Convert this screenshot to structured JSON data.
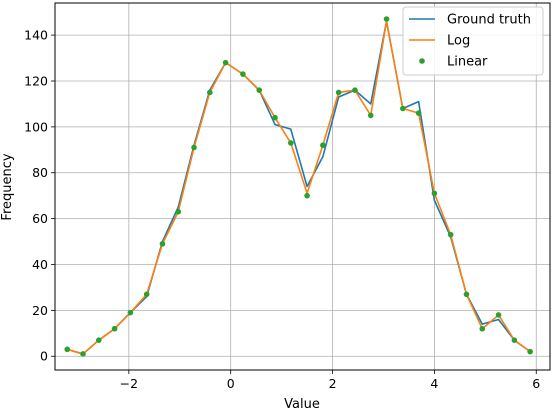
{
  "chart_data": {
    "type": "line",
    "xlabel": "Value",
    "ylabel": "Frequency",
    "xlim": [
      -3.45,
      6.27
    ],
    "ylim": [
      -6,
      154
    ],
    "xticks": [
      -2,
      0,
      2,
      4,
      6
    ],
    "yticks": [
      0,
      20,
      40,
      60,
      80,
      100,
      120,
      140
    ],
    "xtick_labels": [
      "−2",
      "0",
      "2",
      "4",
      "6"
    ],
    "ytick_labels": [
      "0",
      "20",
      "40",
      "60",
      "80",
      "100",
      "120",
      "140"
    ],
    "grid": true,
    "legend_position": "top-right",
    "x": [
      -3.21,
      -2.9,
      -2.59,
      -2.28,
      -1.97,
      -1.65,
      -1.34,
      -1.03,
      -0.72,
      -0.41,
      -0.1,
      0.24,
      0.56,
      0.87,
      1.18,
      1.5,
      1.81,
      2.12,
      2.44,
      2.75,
      3.06,
      3.38,
      3.69,
      4.0,
      4.32,
      4.63,
      4.94,
      5.26,
      5.57,
      5.88
    ],
    "series": [
      {
        "name": "Ground truth",
        "style": "line",
        "color": "#1f77b4",
        "values": [
          3,
          1,
          7,
          12,
          19,
          26,
          50,
          65,
          92,
          116,
          128,
          123,
          116,
          101,
          99,
          74,
          87,
          113,
          116,
          110,
          146,
          108,
          111,
          68,
          52,
          27,
          14,
          16,
          7,
          2
        ]
      },
      {
        "name": "Log",
        "style": "line",
        "color": "#ff7f0e",
        "values": [
          3,
          1,
          7,
          12,
          19,
          27,
          49,
          63,
          91,
          115,
          128,
          123,
          116,
          104,
          93,
          71,
          92,
          115,
          116,
          105,
          146,
          108,
          106,
          71,
          53,
          27,
          12,
          18,
          7,
          2
        ]
      },
      {
        "name": "Linear",
        "style": "markers",
        "color": "#2ca02c",
        "values": [
          3,
          1,
          7,
          12,
          19,
          27,
          49,
          63,
          91,
          115,
          128,
          123,
          116,
          104,
          93,
          70,
          92,
          115,
          116,
          105,
          147,
          108,
          106,
          71,
          53,
          27,
          12,
          18,
          7,
          2
        ]
      }
    ]
  }
}
